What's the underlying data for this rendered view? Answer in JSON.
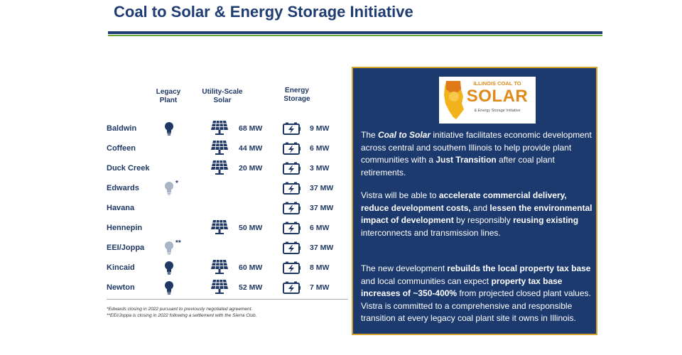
{
  "title": "Coal to Solar & Energy Storage Initiative",
  "columns": {
    "legacy": [
      "Legacy",
      "Plant"
    ],
    "solar": [
      "Utility-Scale",
      "Solar"
    ],
    "storage": [
      "Energy",
      "Storage"
    ]
  },
  "plants": [
    {
      "name": "Baldwin",
      "bulb": "dark",
      "mark": "",
      "solar": "68 MW",
      "storage": "9 MW"
    },
    {
      "name": "Coffeen",
      "bulb": "",
      "mark": "",
      "solar": "44 MW",
      "storage": "6 MW"
    },
    {
      "name": "Duck Creek",
      "bulb": "",
      "mark": "",
      "solar": "20 MW",
      "storage": "3 MW"
    },
    {
      "name": "Edwards",
      "bulb": "light",
      "mark": "*",
      "solar": "",
      "storage": "37 MW"
    },
    {
      "name": "Havana",
      "bulb": "",
      "mark": "",
      "solar": "",
      "storage": "37 MW"
    },
    {
      "name": "Hennepin",
      "bulb": "",
      "mark": "",
      "solar": "50 MW",
      "storage": "6 MW"
    },
    {
      "name": "EEI/Joppa",
      "bulb": "light",
      "mark": "**",
      "solar": "",
      "storage": "37 MW"
    },
    {
      "name": "Kincaid",
      "bulb": "dark",
      "mark": "",
      "solar": "60 MW",
      "storage": "8 MW"
    },
    {
      "name": "Newton",
      "bulb": "dark",
      "mark": "",
      "solar": "52 MW",
      "storage": "7 MW"
    }
  ],
  "footnotes": [
    "*Edwards closing in 2022 pursuant to previously negotiated agreement.",
    "**EEI/Joppa is closing in 2022 following a settlement with the Sierra Club."
  ],
  "logo": {
    "top": "ILLINOIS COAL TO",
    "main": "SOLAR",
    "sub": "& Energy Storage Initiative"
  },
  "info": {
    "p1": [
      {
        "t": "The ",
        "s": "n"
      },
      {
        "t": "Coal to Solar",
        "s": "bi"
      },
      {
        "t": " initiative facilitates economic development across central and southern Illinois to help provide plant communities with a ",
        "s": "n"
      },
      {
        "t": "Just Transition",
        "s": "b"
      },
      {
        "t": " after coal plant retirements.",
        "s": "n"
      }
    ],
    "p2": [
      {
        "t": "Vistra will be able to ",
        "s": "n"
      },
      {
        "t": "accelerate commercial delivery, reduce development costs,",
        "s": "b"
      },
      {
        "t": " and ",
        "s": "n"
      },
      {
        "t": "lessen the environmental impact of development",
        "s": "b"
      },
      {
        "t": " by responsibly ",
        "s": "n"
      },
      {
        "t": "reusing existing",
        "s": "b"
      },
      {
        "t": " interconnects and transmission lines.",
        "s": "n"
      }
    ],
    "p3": [
      {
        "t": "The new development ",
        "s": "n"
      },
      {
        "t": "rebuilds the local property tax base",
        "s": "b"
      },
      {
        "t": " and local communities can expect ",
        "s": "n"
      },
      {
        "t": "property tax base increases of ~350-400%",
        "s": "b"
      },
      {
        "t": " from projected closed plant values. Vistra is committed to a comprehensive and responsible transition at every legacy coal plant site it owns in Illinois.",
        "s": "n"
      }
    ]
  },
  "colors": {
    "navy": "#1d3a6e",
    "gold_border": "#d5a32c",
    "green_rule": "#6aaa3a",
    "bulb_dark": "#1f3864",
    "bulb_light": "#a9b5c6",
    "logo_orange": "#e08a1c"
  },
  "icons": {
    "legacy": "lightbulb-icon",
    "solar": "solar-panel-icon",
    "storage": "battery-icon"
  }
}
